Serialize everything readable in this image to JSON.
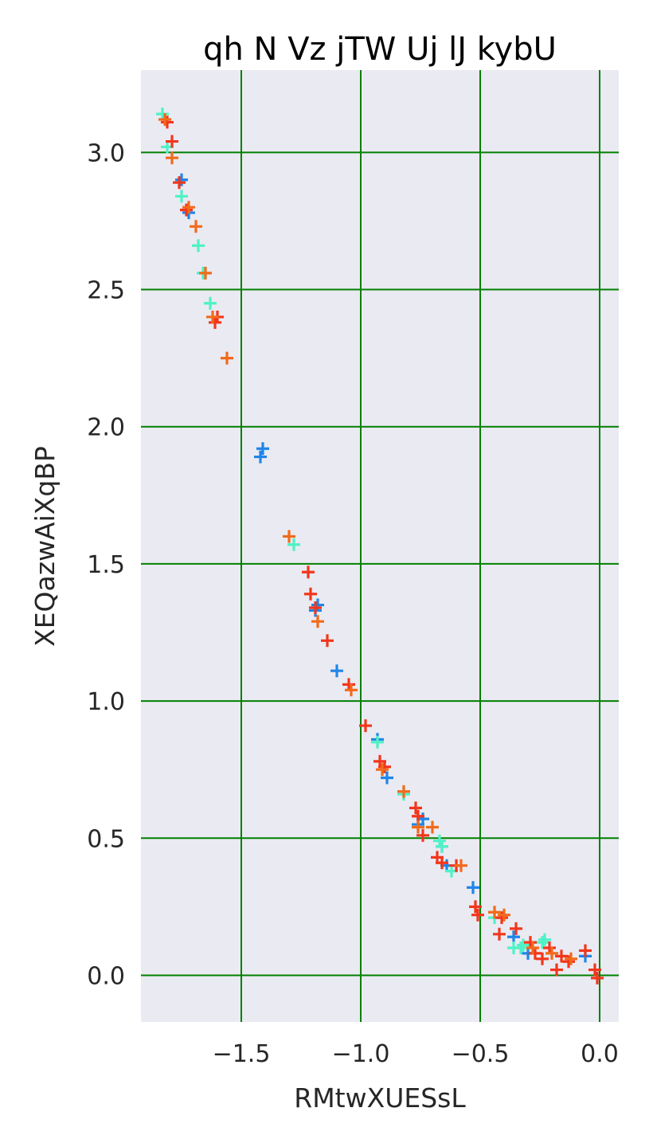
{
  "chart_data": {
    "type": "scatter",
    "title": "qh N Vz jTW Uj lJ kybU",
    "xlabel": "RMtwXUESsL",
    "ylabel": "XEQazwAiXqBP",
    "xlim": [
      -1.92,
      0.08
    ],
    "ylim": [
      -0.17,
      3.3
    ],
    "xticks": [
      -1.5,
      -1.0,
      -0.5,
      0.0
    ],
    "xtick_labels": [
      "−1.5",
      "−1.0",
      "−0.5",
      "0.0"
    ],
    "yticks": [
      0.0,
      0.5,
      1.0,
      1.5,
      2.0,
      2.5,
      3.0
    ],
    "ytick_labels": [
      "0.0",
      "0.5",
      "1.0",
      "1.5",
      "2.0",
      "2.5",
      "3.0"
    ],
    "grid": true,
    "marker": "+",
    "colors": {
      "background": "#eaeaf2",
      "grid": "#008000",
      "series": [
        "#1f85e8",
        "#4ff2c6",
        "#f2361c",
        "#f26a1a"
      ]
    },
    "series": [
      {
        "color": "#1f85e8",
        "x": [
          -1.75,
          -1.72,
          -1.41,
          -1.42,
          -1.18,
          -1.19,
          -1.1,
          -0.93,
          -0.89,
          -0.76,
          -0.74,
          -0.66,
          -0.64,
          -0.53,
          -0.36,
          -0.3,
          -0.06
        ],
        "y": [
          2.9,
          2.78,
          1.92,
          1.89,
          1.35,
          1.33,
          1.11,
          0.86,
          0.72,
          0.55,
          0.57,
          0.47,
          0.4,
          0.32,
          0.14,
          0.08,
          0.07
        ]
      },
      {
        "color": "#4ff2c6",
        "x": [
          -1.83,
          -1.81,
          -1.75,
          -1.68,
          -1.66,
          -1.63,
          -1.28,
          -0.93,
          -0.82,
          -0.67,
          -0.66,
          -0.62,
          -0.44,
          -0.36,
          -0.33,
          -0.32,
          -0.23,
          -0.24
        ],
        "y": [
          3.14,
          3.02,
          2.84,
          2.66,
          2.56,
          2.45,
          1.57,
          0.85,
          0.66,
          0.49,
          0.47,
          0.38,
          0.21,
          0.1,
          0.1,
          0.11,
          0.13,
          0.12
        ]
      },
      {
        "color": "#f2361c",
        "x": [
          -1.81,
          -1.79,
          -1.76,
          -1.73,
          -1.6,
          -1.61,
          -1.22,
          -1.21,
          -1.19,
          -1.14,
          -1.05,
          -0.98,
          -0.92,
          -0.9,
          -0.77,
          -0.76,
          -0.74,
          -0.68,
          -0.66,
          -0.6,
          -0.52,
          -0.51,
          -0.42,
          -0.41,
          -0.35,
          -0.29,
          -0.27,
          -0.24,
          -0.21,
          -0.18,
          -0.16,
          -0.13,
          -0.06,
          -0.02,
          -0.01
        ],
        "y": [
          3.11,
          3.04,
          2.89,
          2.79,
          2.4,
          2.38,
          1.47,
          1.39,
          1.34,
          1.22,
          1.06,
          0.91,
          0.78,
          0.76,
          0.61,
          0.58,
          0.51,
          0.43,
          0.41,
          0.4,
          0.25,
          0.22,
          0.15,
          0.21,
          0.17,
          0.12,
          0.08,
          0.06,
          0.1,
          0.02,
          0.07,
          0.05,
          0.09,
          0.02,
          -0.01
        ]
      },
      {
        "color": "#f26a1a",
        "x": [
          -1.82,
          -1.79,
          -1.72,
          -1.69,
          -1.65,
          -1.62,
          -1.56,
          -1.3,
          -1.18,
          -1.04,
          -0.91,
          -0.82,
          -0.76,
          -0.7,
          -0.58,
          -0.44,
          -0.4,
          -0.28,
          -0.2,
          -0.12
        ],
        "y": [
          3.12,
          2.98,
          2.8,
          2.73,
          2.56,
          2.4,
          2.25,
          1.6,
          1.29,
          1.04,
          0.75,
          0.67,
          0.54,
          0.54,
          0.4,
          0.23,
          0.22,
          0.1,
          0.08,
          0.06
        ]
      }
    ]
  }
}
